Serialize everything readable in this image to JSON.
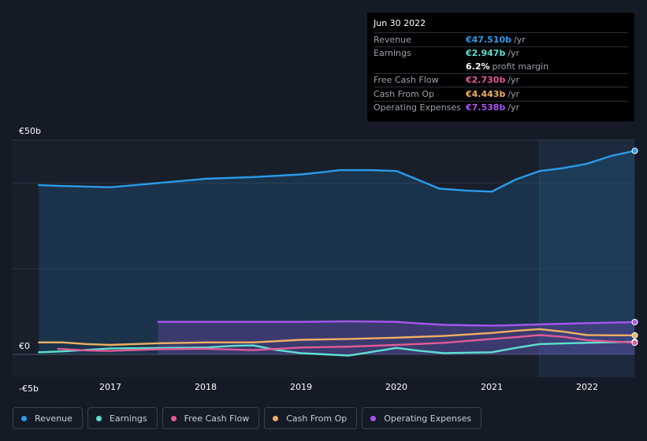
{
  "tooltip": {
    "date": "Jun 30 2022",
    "rows": [
      {
        "label": "Revenue",
        "value": "€47.510b",
        "unit": "/yr",
        "color": "#2b9bea"
      },
      {
        "label": "Earnings",
        "value": "€2.947b",
        "unit": "/yr",
        "color": "#5de0cf"
      },
      {
        "label": "",
        "value": "6.2%",
        "unit": "profit margin",
        "color": "#ffffff"
      },
      {
        "label": "Free Cash Flow",
        "value": "€2.730b",
        "unit": "/yr",
        "color": "#e05a98"
      },
      {
        "label": "Cash From Op",
        "value": "€4.443b",
        "unit": "/yr",
        "color": "#eeaf63"
      },
      {
        "label": "Operating Expenses",
        "value": "€7.538b",
        "unit": "/yr",
        "color": "#a855f0"
      }
    ]
  },
  "legend": [
    {
      "label": "Revenue",
      "color": "#2b9bea"
    },
    {
      "label": "Earnings",
      "color": "#5de0cf"
    },
    {
      "label": "Free Cash Flow",
      "color": "#e05a98"
    },
    {
      "label": "Cash From Op",
      "color": "#eeaf63"
    },
    {
      "label": "Operating Expenses",
      "color": "#a855f0"
    }
  ],
  "chart_data": {
    "type": "line",
    "y_unit": "€b",
    "ylim": [
      -5,
      50
    ],
    "y_tick_labels": [
      {
        "value": 50,
        "label": "€50b"
      },
      {
        "value": 0,
        "label": "€0"
      },
      {
        "value": -5,
        "label": "-€5b"
      }
    ],
    "xlim": [
      2016.2,
      2022.5
    ],
    "x_tick_labels": [
      {
        "value": 2017,
        "label": "2017"
      },
      {
        "value": 2018,
        "label": "2018"
      },
      {
        "value": 2019,
        "label": "2019"
      },
      {
        "value": 2020,
        "label": "2020"
      },
      {
        "value": 2021,
        "label": "2021"
      },
      {
        "value": 2022,
        "label": "2022"
      }
    ],
    "forecast_start": 2021.5,
    "grid": true,
    "legend_position": "bottom",
    "series": [
      {
        "name": "Revenue",
        "color": "#2b9bea",
        "fill": true,
        "points": [
          [
            2016.25,
            39.5
          ],
          [
            2016.5,
            39.3
          ],
          [
            2017.0,
            39.0
          ],
          [
            2017.5,
            40.0
          ],
          [
            2018.0,
            41.0
          ],
          [
            2018.5,
            41.4
          ],
          [
            2019.0,
            42.0
          ],
          [
            2019.25,
            42.6
          ],
          [
            2019.4,
            43.0
          ],
          [
            2019.75,
            43.0
          ],
          [
            2020.0,
            42.8
          ],
          [
            2020.2,
            41.0
          ],
          [
            2020.45,
            38.7
          ],
          [
            2020.75,
            38.2
          ],
          [
            2021.0,
            38.0
          ],
          [
            2021.25,
            40.8
          ],
          [
            2021.5,
            42.8
          ],
          [
            2021.75,
            43.5
          ],
          [
            2022.0,
            44.5
          ],
          [
            2022.25,
            46.3
          ],
          [
            2022.5,
            47.51
          ]
        ]
      },
      {
        "name": "Earnings",
        "color": "#5de0cf",
        "fill": false,
        "points": [
          [
            2016.25,
            0.5
          ],
          [
            2016.5,
            0.7
          ],
          [
            2017.0,
            1.4
          ],
          [
            2017.5,
            1.5
          ],
          [
            2018.0,
            1.6
          ],
          [
            2018.3,
            2.0
          ],
          [
            2018.5,
            2.1
          ],
          [
            2018.75,
            1.0
          ],
          [
            2019.0,
            0.3
          ],
          [
            2019.25,
            0.0
          ],
          [
            2019.5,
            -0.3
          ],
          [
            2019.75,
            0.6
          ],
          [
            2020.0,
            1.5
          ],
          [
            2020.25,
            0.8
          ],
          [
            2020.5,
            0.3
          ],
          [
            2020.75,
            0.4
          ],
          [
            2021.0,
            0.5
          ],
          [
            2021.25,
            1.5
          ],
          [
            2021.5,
            2.4
          ],
          [
            2022.0,
            2.7
          ],
          [
            2022.5,
            2.947
          ]
        ]
      },
      {
        "name": "Free Cash Flow",
        "color": "#e05a98",
        "fill": false,
        "points": [
          [
            2016.45,
            1.3
          ],
          [
            2016.75,
            0.9
          ],
          [
            2017.0,
            0.8
          ],
          [
            2017.5,
            1.2
          ],
          [
            2018.0,
            1.3
          ],
          [
            2018.5,
            1.0
          ],
          [
            2019.0,
            1.6
          ],
          [
            2019.5,
            1.8
          ],
          [
            2020.0,
            2.2
          ],
          [
            2020.5,
            2.7
          ],
          [
            2021.0,
            3.6
          ],
          [
            2021.25,
            4.0
          ],
          [
            2021.5,
            4.5
          ],
          [
            2021.75,
            4.1
          ],
          [
            2022.0,
            3.3
          ],
          [
            2022.25,
            3.0
          ],
          [
            2022.5,
            2.73
          ]
        ]
      },
      {
        "name": "Cash From Op",
        "color": "#eeaf63",
        "fill": false,
        "points": [
          [
            2016.25,
            2.8
          ],
          [
            2016.5,
            2.8
          ],
          [
            2016.75,
            2.4
          ],
          [
            2017.0,
            2.2
          ],
          [
            2017.5,
            2.6
          ],
          [
            2018.0,
            2.8
          ],
          [
            2018.5,
            2.8
          ],
          [
            2019.0,
            3.4
          ],
          [
            2019.5,
            3.6
          ],
          [
            2020.0,
            3.9
          ],
          [
            2020.5,
            4.3
          ],
          [
            2021.0,
            5.0
          ],
          [
            2021.25,
            5.5
          ],
          [
            2021.5,
            5.9
          ],
          [
            2021.75,
            5.3
          ],
          [
            2022.0,
            4.5
          ],
          [
            2022.25,
            4.44
          ],
          [
            2022.5,
            4.443
          ]
        ]
      },
      {
        "name": "Operating Expenses",
        "color": "#a855f0",
        "fill": true,
        "points": [
          [
            2017.5,
            7.6
          ],
          [
            2018.0,
            7.6
          ],
          [
            2018.5,
            7.6
          ],
          [
            2019.0,
            7.6
          ],
          [
            2019.5,
            7.7
          ],
          [
            2020.0,
            7.6
          ],
          [
            2020.25,
            7.2
          ],
          [
            2020.5,
            6.9
          ],
          [
            2021.0,
            6.7
          ],
          [
            2021.5,
            7.0
          ],
          [
            2022.0,
            7.3
          ],
          [
            2022.5,
            7.538
          ]
        ]
      }
    ]
  }
}
